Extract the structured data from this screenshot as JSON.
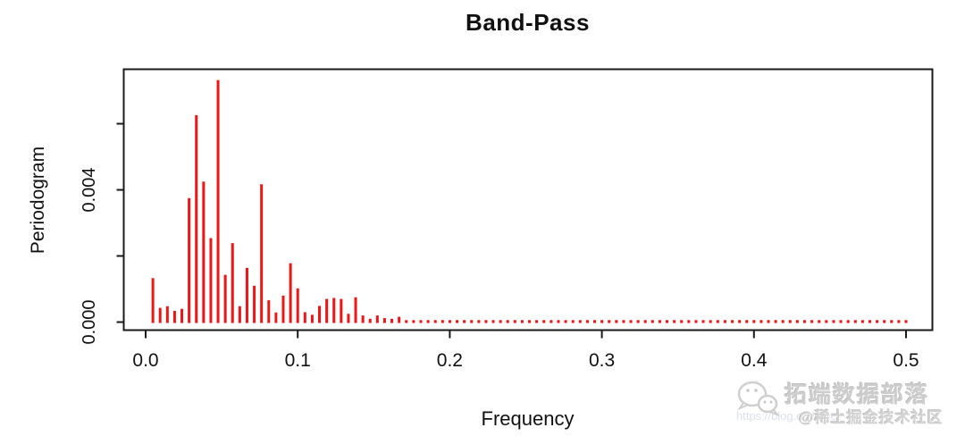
{
  "title": "Band-Pass",
  "axes": {
    "x_label": "Frequency",
    "y_label": "Periodogram",
    "x_ticks": [
      0.0,
      0.1,
      0.2,
      0.3,
      0.4,
      0.5
    ],
    "x_tick_labels": [
      "0.0",
      "0.1",
      "0.2",
      "0.3",
      "0.4",
      "0.5"
    ],
    "y_ticks": [
      0.0,
      0.002,
      0.004,
      0.006
    ],
    "y_tick_labels": [
      "0.000",
      "",
      "0.004",
      ""
    ]
  },
  "chart_data": {
    "type": "bar",
    "subtype": "spike-periodogram",
    "title": "Band-Pass",
    "xlabel": "Frequency",
    "ylabel": "Periodogram",
    "xlim": [
      0.0,
      0.5
    ],
    "ylim": [
      0.0,
      0.0079
    ],
    "grid": false,
    "legend": null,
    "spike_color": "#ee1515",
    "x": [
      0.00476,
      0.00952,
      0.01429,
      0.01905,
      0.02381,
      0.02857,
      0.03333,
      0.0381,
      0.04286,
      0.04762,
      0.05238,
      0.05714,
      0.0619,
      0.06667,
      0.07143,
      0.07619,
      0.08095,
      0.08571,
      0.09048,
      0.09524,
      0.1,
      0.10476,
      0.10952,
      0.11429,
      0.11905,
      0.12381,
      0.12857,
      0.13333,
      0.1381,
      0.14286,
      0.14762,
      0.15238,
      0.15714,
      0.1619,
      0.16667,
      0.17143,
      0.17619,
      0.18095,
      0.18571,
      0.19048,
      0.19524,
      0.2,
      0.20476,
      0.20952,
      0.21429,
      0.21905,
      0.22381,
      0.22857,
      0.23333,
      0.2381,
      0.24286,
      0.24762,
      0.25238,
      0.25714,
      0.2619,
      0.26667,
      0.27143,
      0.27619,
      0.28095,
      0.28571,
      0.29048,
      0.29524,
      0.3,
      0.30476,
      0.30952,
      0.31429,
      0.31905,
      0.32381,
      0.32857,
      0.33333,
      0.3381,
      0.34286,
      0.34762,
      0.35238,
      0.35714,
      0.3619,
      0.36667,
      0.37143,
      0.37619,
      0.38095,
      0.38571,
      0.39048,
      0.39524,
      0.4,
      0.40476,
      0.40952,
      0.41429,
      0.41905,
      0.42381,
      0.42857,
      0.43333,
      0.4381,
      0.44286,
      0.44762,
      0.45238,
      0.45714,
      0.4619,
      0.46667,
      0.47143,
      0.47619,
      0.48095,
      0.48571,
      0.49048,
      0.49524,
      0.5
    ],
    "values": [
      0.00133,
      0.00043,
      0.00048,
      0.00034,
      0.0004,
      0.00375,
      0.00626,
      0.00425,
      0.00254,
      0.00732,
      0.00143,
      0.00239,
      0.00048,
      0.00164,
      0.0011,
      0.00417,
      0.00066,
      0.00029,
      0.0008,
      0.00178,
      0.00102,
      0.0003,
      0.00022,
      0.00049,
      0.0007,
      0.00073,
      0.0007,
      0.00025,
      0.00075,
      0.0002,
      0.0001,
      0.0002,
      0.00012,
      0.0001,
      0.00016,
      6e-05,
      6e-05,
      6e-05,
      6e-05,
      6e-05,
      6e-05,
      6e-05,
      6e-05,
      6e-05,
      6e-05,
      6e-05,
      6e-05,
      6e-05,
      6e-05,
      6e-05,
      6e-05,
      6e-05,
      6e-05,
      6e-05,
      6e-05,
      6e-05,
      6e-05,
      6e-05,
      6e-05,
      6e-05,
      6e-05,
      6e-05,
      6e-05,
      6e-05,
      6e-05,
      6e-05,
      6e-05,
      6e-05,
      6e-05,
      6e-05,
      6e-05,
      6e-05,
      6e-05,
      6e-05,
      6e-05,
      6e-05,
      6e-05,
      6e-05,
      6e-05,
      6e-05,
      6e-05,
      6e-05,
      6e-05,
      6e-05,
      6e-05,
      6e-05,
      6e-05,
      6e-05,
      6e-05,
      6e-05,
      6e-05,
      6e-05,
      6e-05,
      6e-05,
      6e-05,
      6e-05,
      6e-05,
      6e-05,
      6e-05,
      6e-05,
      6e-05,
      6e-05,
      6e-05,
      6e-05,
      6e-05
    ]
  },
  "colors": {
    "spike": "#ee1515",
    "axis": "#1a1a1a",
    "text": "#111111",
    "watermark_gray": "#cdcdcd",
    "watermark_url_gray": "#dbe1ec"
  },
  "watermark": {
    "line1": "拓端数据部落",
    "line2": "@稀土掘金技术社区",
    "faint_url": "https://blog.csdn.net"
  }
}
